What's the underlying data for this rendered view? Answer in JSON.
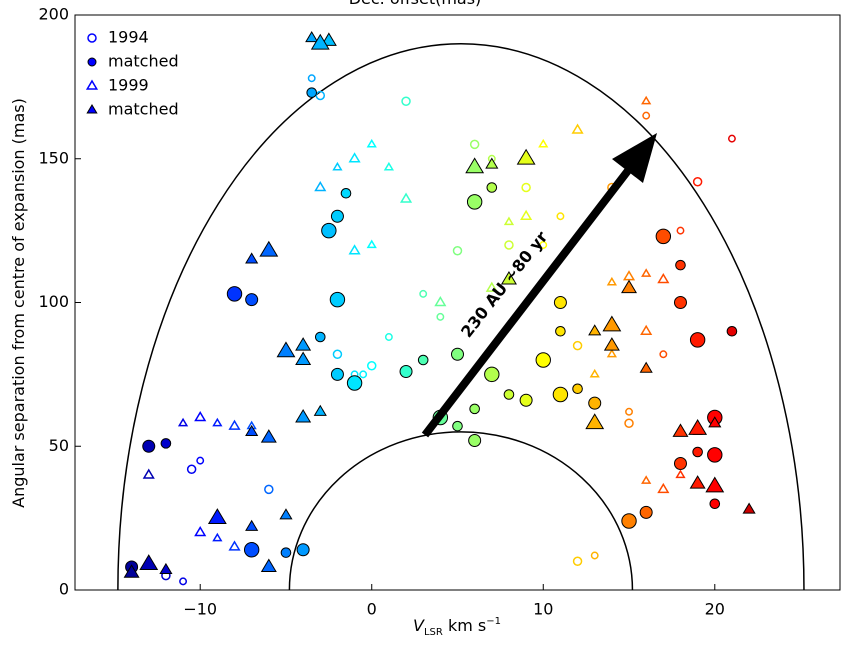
{
  "chart_data": {
    "type": "scatter",
    "title": "Dec. offset(mas)",
    "ylabel": "Angular separation from centre of expansion (mas)",
    "xlabel": {
      "main": "V",
      "sub": "LSR",
      "unit": " km s",
      "sup": "−1"
    },
    "annotation": "230 AU ~80 yr",
    "colormap": "jet",
    "clim": [
      -15,
      25
    ],
    "xlim": [
      -17.3,
      27.3
    ],
    "ylim": [
      0,
      200
    ],
    "xticks": [
      {
        "value": -10,
        "label": "−10"
      },
      0,
      10,
      20
    ],
    "yticks": [
      0,
      50,
      100,
      150,
      200
    ],
    "legend": "upper left",
    "series": [
      {
        "name": "1994",
        "marker": "circle",
        "filled": false,
        "color": "#0000ff",
        "x": [
          -3.5,
          -3,
          -10,
          -12,
          -11,
          0,
          -0.5,
          6,
          7,
          9,
          11,
          14,
          16,
          19,
          21,
          12,
          15,
          15,
          17,
          12,
          13,
          8,
          3,
          -6,
          -1,
          -2,
          4,
          2,
          10,
          -10.5,
          1,
          5,
          18
        ],
        "y": [
          178,
          172,
          45,
          5,
          3,
          78,
          75,
          155,
          150,
          140,
          130,
          140,
          165,
          142,
          157,
          85,
          62,
          58,
          82,
          10,
          12,
          120,
          103,
          35,
          75,
          82,
          95,
          170,
          120,
          42,
          88,
          118,
          125
        ]
      },
      {
        "name": "matched",
        "marker": "circle",
        "filled": true,
        "color": "#0000ff",
        "x": [
          -3.5,
          -2,
          -2.5,
          -1.5,
          -7,
          -8,
          -12,
          -13,
          -7,
          -5,
          -4,
          -2,
          -3,
          -2,
          -1,
          6,
          5,
          7,
          8,
          9,
          11,
          12,
          13,
          4,
          5,
          6,
          10,
          11,
          11,
          17,
          18,
          18,
          19,
          19,
          18,
          20,
          20,
          16,
          15,
          3,
          2,
          6,
          7,
          -14,
          20,
          21
        ],
        "y": [
          173,
          130,
          125,
          138,
          101,
          103,
          51,
          50,
          14,
          13,
          14,
          101,
          88,
          75,
          72,
          63,
          82,
          75,
          68,
          66,
          68,
          70,
          65,
          60,
          57,
          52,
          80,
          90,
          100,
          123,
          113,
          100,
          87,
          48,
          44,
          47,
          30,
          27,
          24,
          80,
          76,
          135,
          140,
          8,
          60,
          90
        ]
      },
      {
        "name": "1999",
        "marker": "triangle",
        "filled": false,
        "color": "#0000ff",
        "x": [
          -11,
          -10,
          -9,
          -8,
          -7,
          -10,
          -9,
          -8,
          -2,
          -1,
          0,
          -3,
          1,
          2,
          8,
          9,
          14,
          15,
          16,
          17,
          14,
          16,
          16,
          17,
          18,
          -1,
          0,
          4,
          10,
          12,
          16,
          7,
          13,
          -13,
          19
        ],
        "y": [
          58,
          60,
          58,
          57,
          57,
          20,
          18,
          15,
          147,
          150,
          155,
          140,
          147,
          136,
          128,
          130,
          107,
          109,
          110,
          108,
          82,
          90,
          38,
          35,
          40,
          118,
          120,
          100,
          155,
          160,
          170,
          105,
          75,
          40,
          55
        ]
      },
      {
        "name": "matched",
        "marker": "triangle",
        "filled": true,
        "color": "#0000ff",
        "x": [
          -3.5,
          -2.5,
          -3,
          -7,
          -6,
          -9,
          -7,
          -6,
          -13,
          -12,
          -14,
          -6,
          -7,
          -4,
          -5,
          -3,
          -4,
          6,
          7,
          8,
          9,
          13,
          14,
          14,
          16,
          18,
          19,
          20,
          19,
          20,
          22,
          15,
          13,
          -5,
          -4
        ],
        "y": [
          192,
          191,
          190,
          55,
          53,
          25,
          22,
          8,
          9,
          7,
          6,
          118,
          115,
          80,
          83,
          62,
          60,
          147,
          148,
          108,
          150,
          90,
          85,
          92,
          77,
          55,
          56,
          58,
          37,
          36,
          28,
          105,
          58,
          26,
          85
        ]
      }
    ]
  }
}
